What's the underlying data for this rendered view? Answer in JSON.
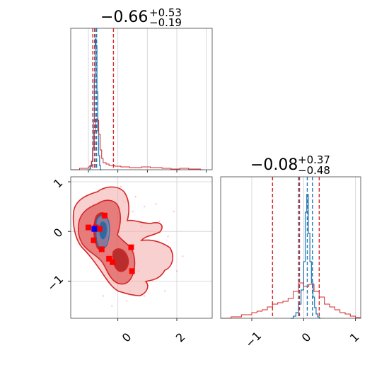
{
  "chart_data": {
    "type": "corner",
    "parameters": [
      {
        "title_main": "−0.66",
        "title_plus": "+0.53",
        "title_minus": "−0.19"
      },
      {
        "title_main": "−0.08",
        "title_plus": "+0.37",
        "title_minus": "−0.48"
      }
    ],
    "series": [
      {
        "color": "#1f77b4",
        "quantiles_p0": [
          -0.85,
          -0.79,
          -0.72
        ],
        "quantiles_p1": [
          -0.1,
          0.07,
          0.17
        ]
      },
      {
        "color": "#d62728",
        "quantiles_p0": [
          -0.85,
          -0.77,
          -0.15
        ],
        "quantiles_p1": [
          -0.6,
          -0.08,
          0.3
        ]
      }
    ],
    "panel_p0_hist": {
      "xlim": [
        -1.6,
        3.2
      ],
      "xticks": [
        -1,
        0,
        1,
        2,
        3
      ]
    },
    "panel_p0_p1": {
      "xlim": [
        -1.6,
        3.2
      ],
      "ylim": [
        -1.75,
        1.1
      ],
      "xticks": [
        0,
        2
      ],
      "xtick_labels": [
        "0",
        "2"
      ],
      "yticks": [
        1,
        0,
        -1
      ],
      "ytick_labels": [
        "1",
        "0",
        "−1"
      ],
      "red_points": [
        [
          -1.0,
          0.08
        ],
        [
          -0.45,
          0.32
        ],
        [
          -0.75,
          0.08
        ],
        [
          -0.82,
          -0.18
        ],
        [
          -0.55,
          -0.36
        ],
        [
          -0.18,
          -0.62
        ],
        [
          0.45,
          -0.32
        ],
        [
          0.48,
          -0.8
        ],
        [
          -0.3,
          -0.55
        ],
        [
          -0.62,
          0.05
        ]
      ]
    },
    "panel_p1_hist": {
      "xlim": [
        -1.6,
        1.1
      ],
      "xticks": [
        -1,
        0,
        1
      ],
      "xtick_labels": [
        "−1",
        "0",
        "1"
      ]
    }
  }
}
